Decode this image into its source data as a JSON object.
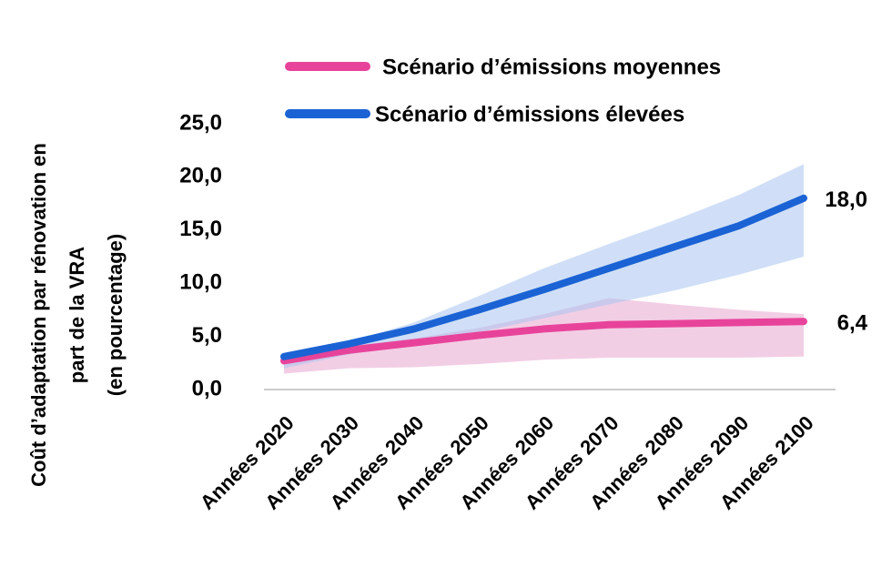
{
  "chart_data": {
    "type": "line",
    "ylabel": [
      "Coût d’adaptation par rénovation en",
      "part de la VRA",
      "(en pourcentage)"
    ],
    "categories": [
      "Années 2020",
      "Années 2030",
      "Années 2040",
      "Années 2050",
      "Années 2060",
      "Années 2070",
      "Années 2080",
      "Années 2090",
      "Années 2100"
    ],
    "series": [
      {
        "name": "Scénario d’émissions moyennes",
        "color": "#e8439a",
        "band_color": "#e8a6d0",
        "values": [
          2.7,
          3.7,
          4.4,
          5.1,
          5.7,
          6.1,
          6.2,
          6.3,
          6.4
        ],
        "lower": [
          1.5,
          2.0,
          2.1,
          2.4,
          2.8,
          3.0,
          3.0,
          3.0,
          3.1
        ],
        "upper": [
          3.1,
          4.1,
          4.8,
          5.8,
          7.1,
          8.6,
          8.0,
          7.5,
          7.1
        ],
        "value_labels": [
          null,
          null,
          null,
          null,
          null,
          null,
          null,
          null,
          "6,4"
        ]
      },
      {
        "name": "Scénario d’émissions élevées",
        "color": "#1b63d4",
        "band_color": "#a9c4f0",
        "values": [
          3.1,
          4.3,
          5.7,
          7.5,
          9.4,
          11.4,
          13.4,
          15.4,
          18.0
        ],
        "lower": [
          2.0,
          3.3,
          4.5,
          5.4,
          6.7,
          8.0,
          9.3,
          10.8,
          12.5
        ],
        "upper": [
          3.4,
          4.5,
          6.3,
          8.8,
          11.4,
          13.7,
          15.9,
          18.3,
          21.2
        ],
        "value_labels": [
          null,
          null,
          null,
          null,
          null,
          null,
          null,
          null,
          "18,0"
        ]
      }
    ],
    "ylim": [
      0,
      25
    ],
    "yticks": [
      {
        "value": 0,
        "label": "0,0"
      },
      {
        "value": 5,
        "label": "5,0"
      },
      {
        "value": 10,
        "label": "10,0"
      },
      {
        "value": 15,
        "label": "15,0"
      },
      {
        "value": 20,
        "label": "20,0"
      },
      {
        "value": 25,
        "label": "25,0"
      }
    ]
  }
}
